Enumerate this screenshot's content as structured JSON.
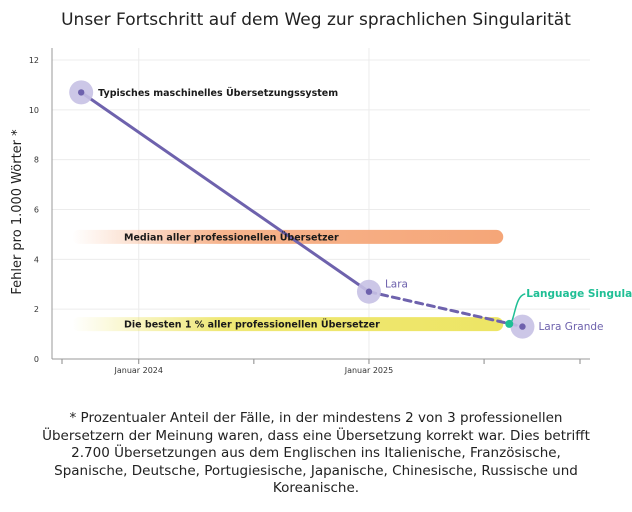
{
  "chart_data": {
    "type": "line",
    "title": "Unser Fortschritt auf dem Weg zur sprachlichen Singularität",
    "xlabel": "",
    "ylabel": "Fehler pro 1.000 Wörter *",
    "ylim": [
      0,
      12
    ],
    "yticks": [
      "0",
      "2",
      "4",
      "6",
      "8",
      "10",
      "12"
    ],
    "xlim": [
      "2023-09",
      "2025-12"
    ],
    "xticks": [
      {
        "date": "2024-01",
        "label": "Januar 2024"
      },
      {
        "date": "2025-01",
        "label": "Januar 2025"
      }
    ],
    "xminor_ticks": [
      "2023-09",
      "2024-07",
      "2025-07",
      "2025-12"
    ],
    "grid": true,
    "series": [
      {
        "color": "#6e62ad",
        "points": [
          {
            "x": "2023-10",
            "y": 10.7,
            "label": "Typisches maschinelles Übersetzungssystem",
            "style": "solid"
          },
          {
            "x": "2025-01",
            "y": 2.7,
            "label": "Lara",
            "style": "solid"
          },
          {
            "x": "2025-09",
            "y": 1.3,
            "label": "Lara Grande",
            "style": "dashed"
          }
        ]
      }
    ],
    "bands": [
      {
        "label": "Median aller professionellen Übersetzer",
        "y": 4.9,
        "x_end": "2025-08",
        "color": "#f5a678"
      },
      {
        "label": "Die besten 1 % aller professionellen Übersetzer",
        "y": 1.4,
        "x_end": "2025-08",
        "color": "#ede565"
      }
    ],
    "annotations": [
      {
        "label": "Language Singularity",
        "x": "2025-08",
        "y": 1.45,
        "color": "#1fbf95"
      }
    ]
  },
  "footnote": "* Prozentualer Anteil der Fälle, in der mindestens 2 von 3 professionellen Übersetzern der Meinung waren, dass eine Übersetzung korrekt war. Dies betrifft 2.700 Übersetzungen aus dem Englischen ins Italienische, Französische, Spanische, Deutsche, Portugiesische, Japanische, Chinesische, Russische und Koreanische."
}
